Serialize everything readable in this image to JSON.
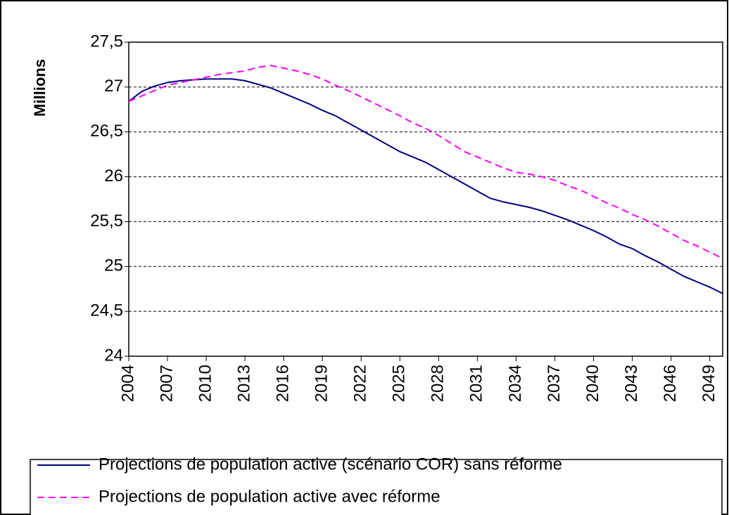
{
  "chart_data": {
    "type": "line",
    "y_label": "Millions",
    "x": [
      2004,
      2005,
      2006,
      2007,
      2008,
      2009,
      2010,
      2011,
      2012,
      2013,
      2014,
      2015,
      2016,
      2017,
      2018,
      2019,
      2020,
      2021,
      2022,
      2023,
      2024,
      2025,
      2026,
      2027,
      2028,
      2029,
      2030,
      2031,
      2032,
      2033,
      2034,
      2035,
      2036,
      2037,
      2038,
      2039,
      2040,
      2041,
      2042,
      2043,
      2044,
      2045,
      2046,
      2047,
      2048,
      2049,
      2050
    ],
    "series": [
      {
        "name": "Projections de population active (scénario COR) sans réforme",
        "color": "#000080",
        "style": "solid",
        "values": [
          26.84,
          26.95,
          27.01,
          27.05,
          27.07,
          27.08,
          27.09,
          27.09,
          27.09,
          27.07,
          27.03,
          26.99,
          26.93,
          26.87,
          26.81,
          26.74,
          26.68,
          26.6,
          26.52,
          26.44,
          26.36,
          26.28,
          26.22,
          26.16,
          26.08,
          26.0,
          25.92,
          25.84,
          25.76,
          25.72,
          25.69,
          25.66,
          25.62,
          25.57,
          25.52,
          25.46,
          25.4,
          25.33,
          25.25,
          25.2,
          25.12,
          25.05,
          24.97,
          24.89,
          24.83,
          24.77,
          24.7
        ]
      },
      {
        "name": "Projections de population active avec réforme",
        "color": "#ff00ff",
        "style": "dashed",
        "values": [
          26.84,
          26.9,
          26.96,
          27.02,
          27.05,
          27.08,
          27.11,
          27.14,
          27.16,
          27.18,
          27.22,
          27.24,
          27.21,
          27.18,
          27.14,
          27.09,
          27.02,
          26.96,
          26.89,
          26.82,
          26.75,
          26.68,
          26.6,
          26.54,
          26.46,
          26.37,
          26.28,
          26.22,
          26.16,
          26.1,
          26.05,
          26.03,
          26.0,
          25.96,
          25.9,
          25.85,
          25.78,
          25.71,
          25.65,
          25.58,
          25.52,
          25.45,
          25.37,
          25.29,
          25.23,
          25.16,
          25.09
        ]
      }
    ],
    "xlim": [
      2004,
      2050
    ],
    "xticks": [
      2004,
      2007,
      2010,
      2013,
      2016,
      2019,
      2022,
      2025,
      2028,
      2031,
      2034,
      2037,
      2040,
      2043,
      2046,
      2049
    ],
    "ylim": [
      24,
      27.5
    ],
    "yticks": [
      24,
      {
        "value": 24.5,
        "label": "24,5"
      },
      25,
      {
        "value": 25.5,
        "label": "25,5"
      },
      26,
      {
        "value": 26.5,
        "label": "26,5"
      },
      27,
      {
        "value": 27.5,
        "label": "27,5"
      }
    ],
    "grid": true,
    "legend": "bottom"
  }
}
